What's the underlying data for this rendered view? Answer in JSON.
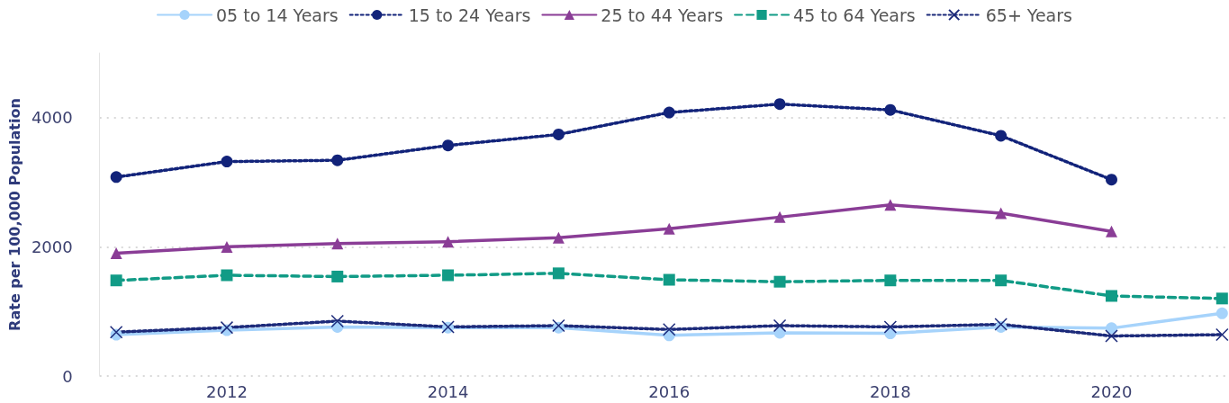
{
  "chart_data": {
    "type": "line",
    "ylabel": "Rate per 100,000 Population",
    "x": [
      2011,
      2012,
      2013,
      2014,
      2015,
      2016,
      2017,
      2018,
      2019,
      2020,
      2021
    ],
    "xlim": [
      2010.85,
      2021.03
    ],
    "xticks": [
      2012,
      2014,
      2016,
      2018,
      2020
    ],
    "ylim": [
      0,
      5000
    ],
    "yticks": [
      0,
      2000,
      4000
    ],
    "grid": "y",
    "legend": "top",
    "series": [
      {
        "name": "05 to 14 Years",
        "color": "#a6d3fb",
        "marker": "circle",
        "line_style": "solid",
        "values": [
          640,
          710,
          760,
          750,
          750,
          630,
          670,
          660,
          760,
          740,
          970
        ]
      },
      {
        "name": "15 to 24 Years",
        "color": "#12237a",
        "marker": "circle",
        "line_style": "dotted",
        "values": [
          3080,
          3320,
          3340,
          3570,
          3740,
          4080,
          4210,
          4120,
          3720,
          3040,
          null
        ]
      },
      {
        "name": "25 to 44 Years",
        "color": "#8a3d96",
        "marker": "triangle",
        "line_style": "solid",
        "values": [
          1900,
          2000,
          2050,
          2080,
          2140,
          2280,
          2460,
          2650,
          2520,
          2240,
          null
        ]
      },
      {
        "name": "45 to 64 Years",
        "color": "#119b86",
        "marker": "square",
        "line_style": "dashed",
        "values": [
          1480,
          1560,
          1540,
          1560,
          1590,
          1490,
          1460,
          1480,
          1480,
          1240,
          1200
        ]
      },
      {
        "name": "65+ Years",
        "color": "#1c2a7a",
        "marker": "cross",
        "line_style": "dotted",
        "values": [
          680,
          750,
          850,
          760,
          780,
          720,
          780,
          760,
          800,
          620,
          640
        ]
      }
    ]
  }
}
